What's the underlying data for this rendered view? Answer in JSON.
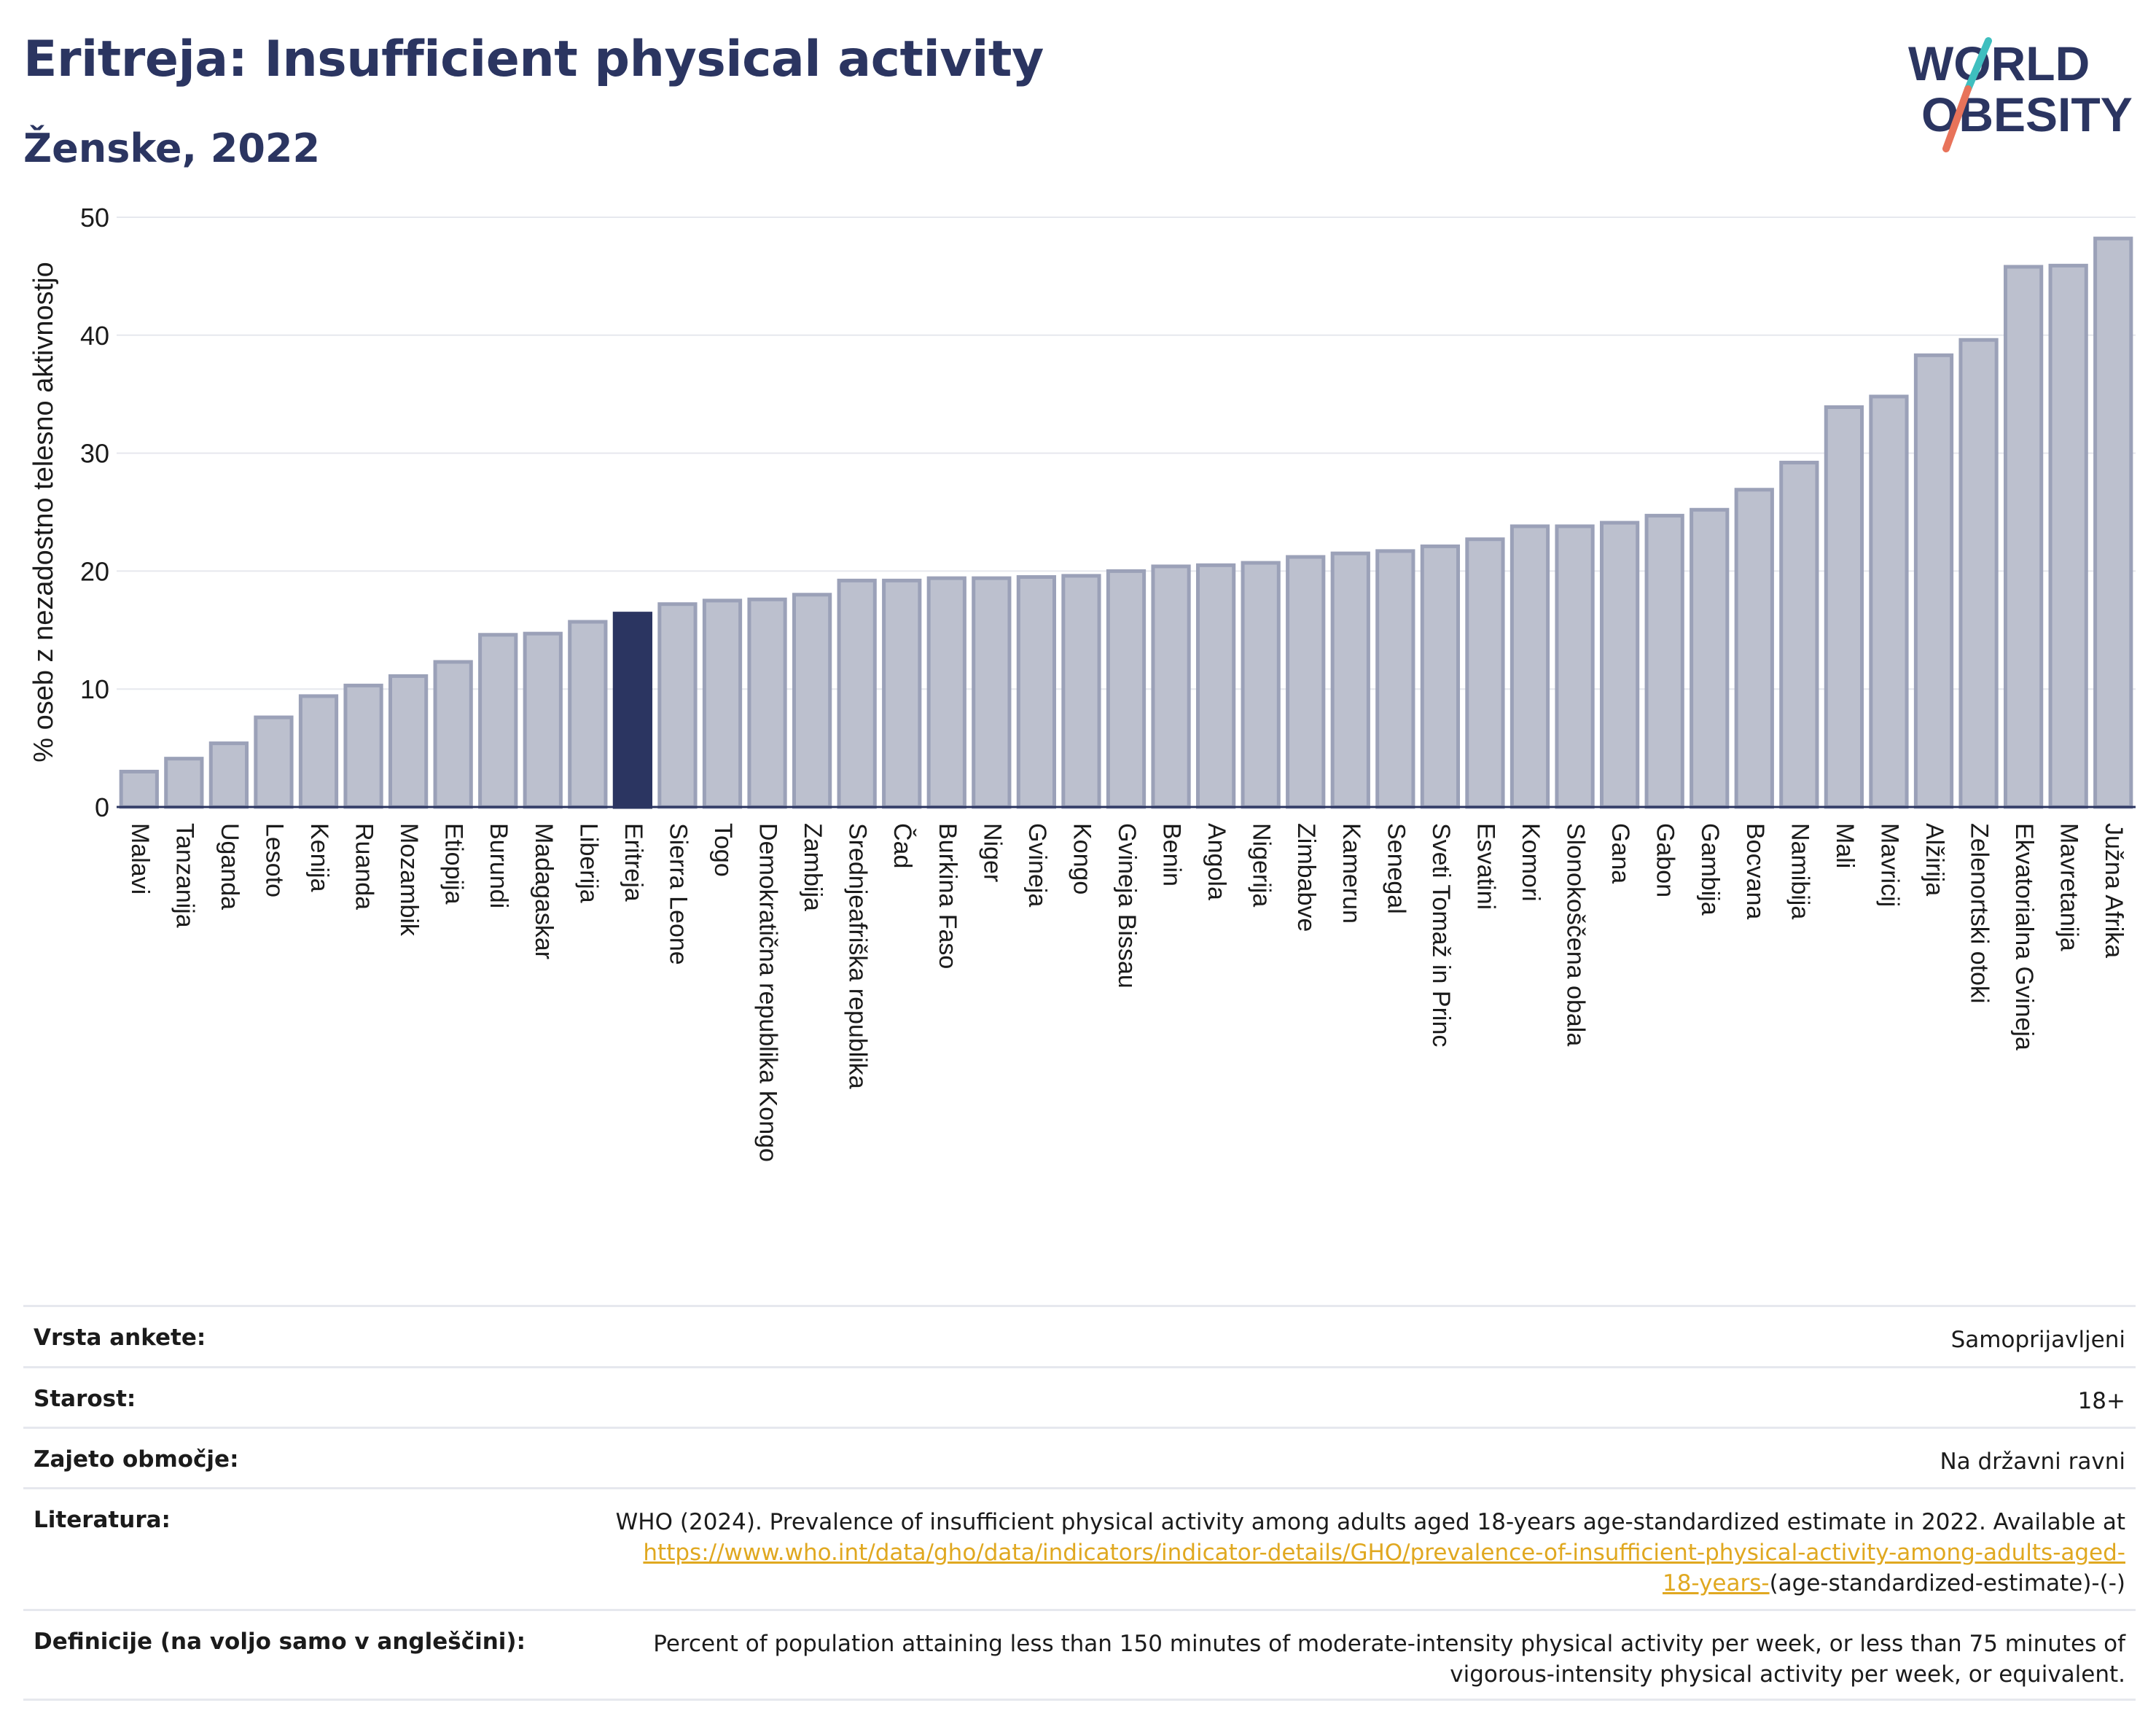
{
  "header": {
    "title": "Eritreja: Insufficient physical activity",
    "subtitle": "Ženske, 2022"
  },
  "logo": {
    "line1": "WORLD",
    "line2": "OBESITY",
    "colors": {
      "text": "#2b3561",
      "slash_teal": "#3fbfbf",
      "slash_coral": "#e8735a"
    }
  },
  "colors": {
    "bar": "#bcc0ce",
    "bar_edge": "#9ba1b8",
    "highlight": "#2b3561",
    "grid": "#e6e8ee",
    "axis": "#2b3561",
    "text": "#1b1b1b",
    "link": "#e0a820"
  },
  "chart_data": {
    "type": "bar",
    "title": "Eritreja: Insufficient physical activity",
    "subtitle": "Ženske, 2022",
    "xlabel": "",
    "ylabel": "% oseb z nezadostno telesno aktivnostjo",
    "ylim": [
      0,
      50
    ],
    "yticks": [
      0,
      10,
      20,
      30,
      40,
      50
    ],
    "grid": true,
    "highlight": "Eritreja",
    "categories": [
      "Malavi",
      "Tanzanija",
      "Uganda",
      "Lesoto",
      "Kenija",
      "Ruanda",
      "Mozambik",
      "Etiopija",
      "Burundi",
      "Madagaskar",
      "Liberija",
      "Eritreja",
      "Sierra Leone",
      "Togo",
      "Demokratična republika Kongo",
      "Zambija",
      "Srednjeafriška republika",
      "Čad",
      "Burkina Faso",
      "Niger",
      "Gvineja",
      "Kongo",
      "Gvineja Bissau",
      "Benin",
      "Angola",
      "Nigerija",
      "Zimbabve",
      "Kamerun",
      "Senegal",
      "Sveti Tomaž in Princ",
      "Esvatini",
      "Komori",
      "Slonokoščena obala",
      "Gana",
      "Gabon",
      "Gambija",
      "Bocvana",
      "Namibija",
      "Mali",
      "Mavricij",
      "Alžirija",
      "Zelenortski otoki",
      "Ekvatorialna Gvineja",
      "Mavretanija",
      "Južna Afrika"
    ],
    "values": [
      3.0,
      4.1,
      5.4,
      7.6,
      9.4,
      10.3,
      11.1,
      12.3,
      14.6,
      14.7,
      15.7,
      16.4,
      17.2,
      17.5,
      17.6,
      18.0,
      19.2,
      19.2,
      19.4,
      19.4,
      19.5,
      19.6,
      20.0,
      20.4,
      20.5,
      20.7,
      21.2,
      21.5,
      21.7,
      22.1,
      22.7,
      23.8,
      23.8,
      24.1,
      24.7,
      25.2,
      26.9,
      29.2,
      33.9,
      34.8,
      38.3,
      39.6,
      45.8,
      45.9,
      48.2
    ]
  },
  "meta": {
    "rows": [
      {
        "label": "Vrsta ankete:",
        "value": "Samoprijavljeni"
      },
      {
        "label": "Starost:",
        "value": "18+"
      },
      {
        "label": "Zajeto območje:",
        "value": "Na državni ravni"
      }
    ],
    "literature": {
      "label": "Literatura:",
      "text": "WHO (2024). Prevalence of insufficient physical activity among adults aged 18-years age-standardized estimate in 2022. Available at",
      "link_line1": "https://www.who.int/data/gho/data/indicators/indicator-details/GHO/prevalence-of-insufficient-physical-activity-among-adults-aged-",
      "link_line2": "18-years-",
      "suffix": "(age-standardized-estimate)-(-)"
    },
    "definition": {
      "label": "Definicije (na voljo samo v angleščini):",
      "text": "Percent of population attaining less than 150 minutes of moderate-intensity physical activity per week, or less than 75 minutes of vigorous-intensity physical activity per week, or equivalent."
    }
  }
}
